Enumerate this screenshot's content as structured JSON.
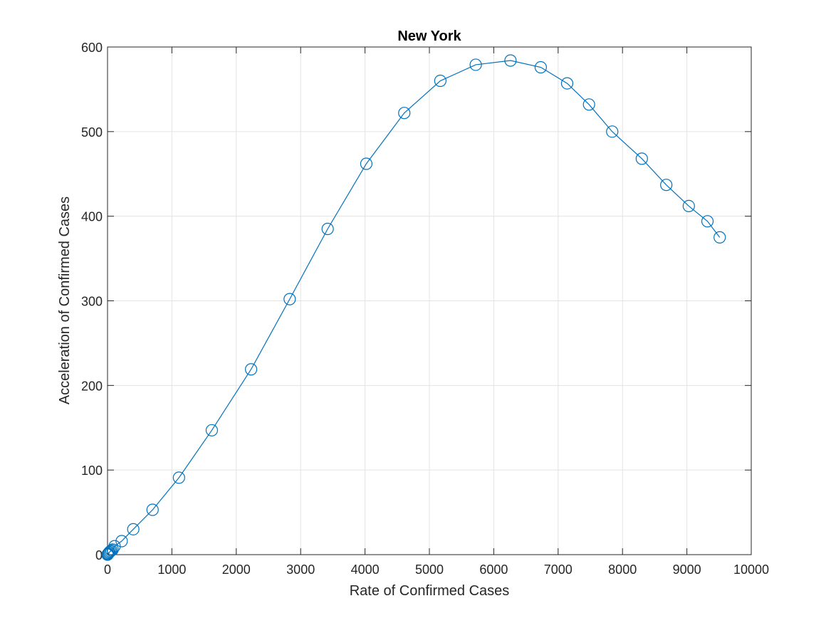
{
  "chart_data": {
    "type": "line",
    "title": "New York",
    "xlabel": "Rate of Confirmed Cases",
    "ylabel": "Acceleration of Confirmed Cases",
    "xlim": [
      0,
      10000
    ],
    "ylim": [
      0,
      600
    ],
    "xticks": [
      0,
      1000,
      2000,
      3000,
      4000,
      5000,
      6000,
      7000,
      8000,
      9000,
      10000
    ],
    "yticks": [
      0,
      100,
      200,
      300,
      400,
      500,
      600
    ],
    "grid": true,
    "color": "#0072bd",
    "marker": "circle",
    "series": [
      {
        "x": [
          0,
          5,
          10,
          20,
          30,
          45,
          60,
          80,
          110,
          220,
          400,
          700,
          1110,
          1620,
          2230,
          2830,
          3420,
          4020,
          4610,
          5170,
          5720,
          6260,
          6730,
          7140,
          7480,
          7840,
          8300,
          8680,
          9030,
          9320,
          9510
        ],
        "y": [
          0,
          0.5,
          1,
          2,
          3,
          4,
          5,
          6,
          10,
          16,
          30,
          53,
          91,
          147,
          219,
          302,
          385,
          462,
          522,
          560,
          579,
          584,
          576,
          557,
          532,
          500,
          468,
          437,
          412,
          394,
          375
        ]
      }
    ]
  }
}
